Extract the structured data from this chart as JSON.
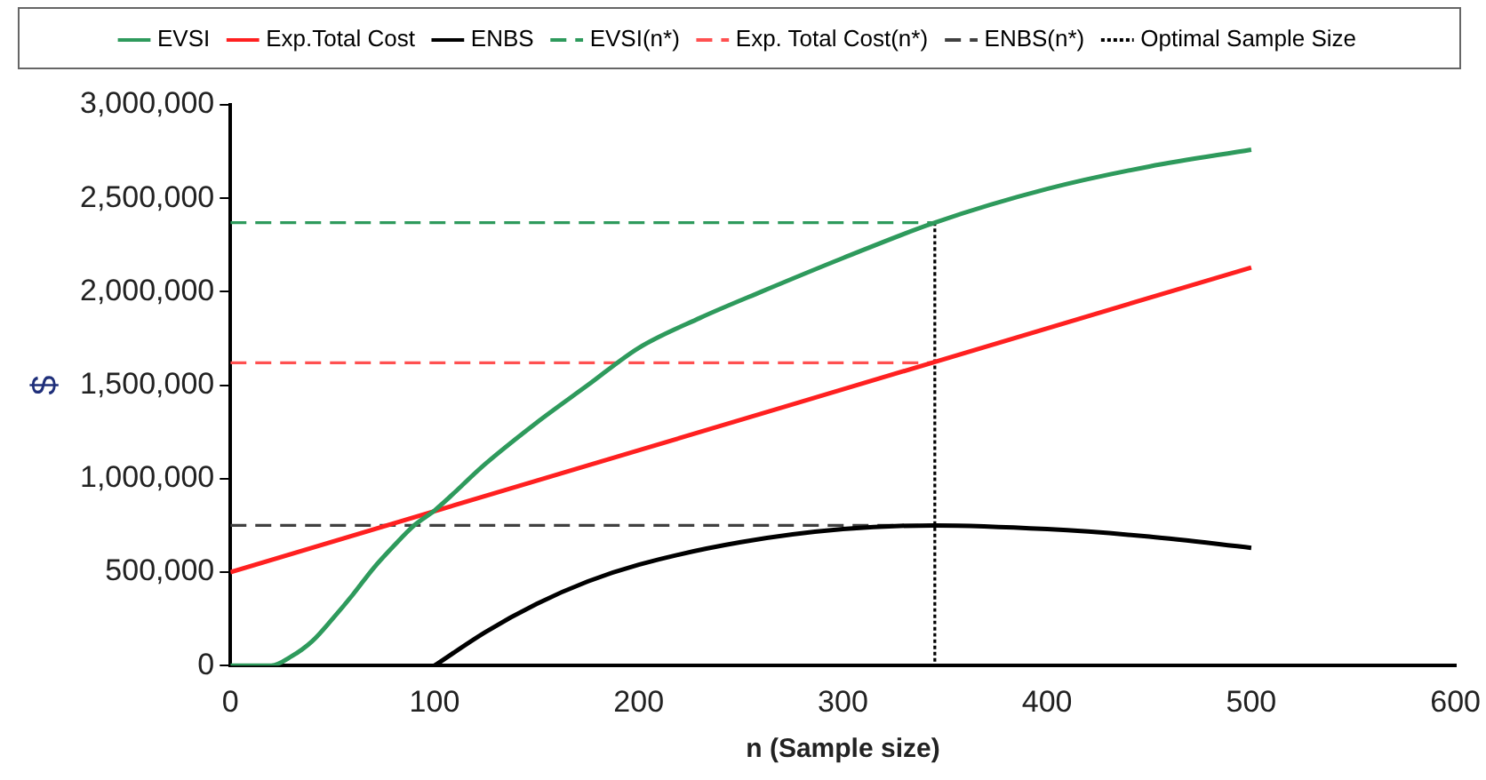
{
  "chart_data": {
    "type": "line",
    "xlabel": "n (Sample size)",
    "ylabel": "$",
    "xlim": [
      0,
      600
    ],
    "xticks": [
      0,
      100,
      200,
      300,
      400,
      500,
      600
    ],
    "ylim": [
      0,
      3000000
    ],
    "yticks": [
      {
        "value": 0,
        "label": "0"
      },
      {
        "value": 500000,
        "label": "500,000"
      },
      {
        "value": 1000000,
        "label": "1,000,000"
      },
      {
        "value": 1500000,
        "label": "1,500,000"
      },
      {
        "value": 2000000,
        "label": "2,000,000"
      },
      {
        "value": 2500000,
        "label": "2,500,000"
      },
      {
        "value": 3000000,
        "label": "3,000,000"
      }
    ],
    "grid": false,
    "legend": "top",
    "marker": "none",
    "series": [
      {
        "name": "EVSI",
        "color": "#2e9a5c",
        "line_style": "solid",
        "x": [
          0,
          10,
          20,
          30,
          40,
          50,
          60,
          70,
          80,
          90,
          100,
          125,
          150,
          175,
          200,
          230,
          260,
          300,
          345,
          400,
          450,
          500
        ],
        "values": [
          0,
          0,
          0,
          50000,
          130000,
          250000,
          380000,
          520000,
          640000,
          750000,
          830000,
          1080000,
          1300000,
          1500000,
          1700000,
          1860000,
          2000000,
          2180000,
          2370000,
          2550000,
          2670000,
          2760000
        ]
      },
      {
        "name": "Exp.Total Cost",
        "color": "#ff2020",
        "line_style": "solid",
        "x": [
          0,
          500
        ],
        "values": [
          500000,
          2130000
        ]
      },
      {
        "name": "ENBS",
        "color": "#000000",
        "line_style": "solid",
        "x": [
          100,
          125,
          150,
          175,
          200,
          250,
          300,
          345,
          400,
          450,
          500
        ],
        "values": [
          0,
          180000,
          330000,
          450000,
          540000,
          660000,
          730000,
          750000,
          730000,
          690000,
          630000
        ]
      },
      {
        "name": "EVSI(n*)",
        "color": "#2e9a5c",
        "line_style": "dashed",
        "x": [
          0,
          345
        ],
        "values": [
          2370000,
          2370000
        ]
      },
      {
        "name": "Exp. Total Cost(n*)",
        "color": "#ff5050",
        "line_style": "dashed",
        "x": [
          0,
          345
        ],
        "values": [
          1620000,
          1620000
        ]
      },
      {
        "name": "ENBS(n*)",
        "color": "#404040",
        "line_style": "dashed",
        "x": [
          0,
          345
        ],
        "values": [
          750000,
          750000
        ]
      },
      {
        "name": "Optimal Sample Size",
        "color": "#000000",
        "line_style": "dotted",
        "x": [
          345,
          345
        ],
        "values": [
          2370000,
          0
        ]
      }
    ]
  }
}
